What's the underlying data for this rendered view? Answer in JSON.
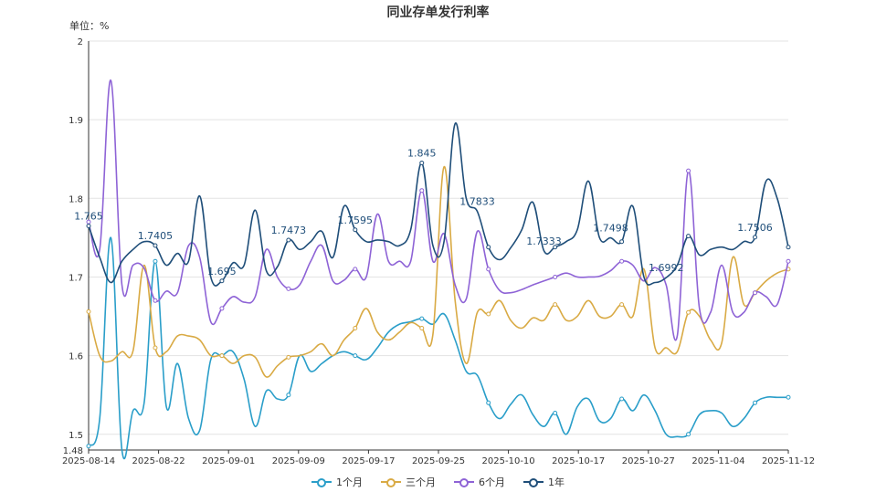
{
  "chart_data": {
    "type": "line",
    "title": "同业存单发行利率",
    "unit_label": "单位：%",
    "ylim": [
      1.48,
      2.0
    ],
    "y_ticks": [
      1.48,
      1.5,
      1.6,
      1.7,
      1.8,
      1.9,
      2
    ],
    "y_tick_labels": [
      "1.48",
      "1.5",
      "1.6",
      "1.7",
      "1.8",
      "1.9",
      "2"
    ],
    "x_tick_labels": [
      "2025-08-14",
      "2025-08-22",
      "2025-09-01",
      "2025-09-09",
      "2025-09-17",
      "2025-09-25",
      "2025-10-10",
      "2025-10-17",
      "2025-10-27",
      "2025-11-04",
      "2025-11-12"
    ],
    "x_count": 64,
    "grid": true,
    "legend_position": "bottom",
    "series": [
      {
        "name": "1个月",
        "color": "#2a9ec9",
        "values": [
          1.485,
          1.52,
          1.75,
          1.48,
          1.53,
          1.54,
          1.72,
          1.535,
          1.59,
          1.52,
          1.505,
          1.595,
          1.6,
          1.605,
          1.57,
          1.51,
          1.555,
          1.545,
          1.55,
          1.6,
          1.58,
          1.59,
          1.6,
          1.605,
          1.6,
          1.595,
          1.61,
          1.63,
          1.64,
          1.643,
          1.647,
          1.64,
          1.653,
          1.62,
          1.58,
          1.575,
          1.54,
          1.52,
          1.538,
          1.55,
          1.525,
          1.51,
          1.527,
          1.5,
          1.535,
          1.545,
          1.517,
          1.52,
          1.545,
          1.53,
          1.55,
          1.53,
          1.5,
          1.497,
          1.5,
          1.525,
          1.53,
          1.527,
          1.51,
          1.52,
          1.54,
          1.547,
          1.547,
          1.547
        ]
      },
      {
        "name": "三个月",
        "color": "#d9aa44",
        "values": [
          1.656,
          1.6,
          1.593,
          1.605,
          1.606,
          1.715,
          1.61,
          1.605,
          1.625,
          1.625,
          1.62,
          1.6,
          1.6,
          1.59,
          1.6,
          1.598,
          1.573,
          1.587,
          1.598,
          1.6,
          1.605,
          1.615,
          1.6,
          1.62,
          1.635,
          1.66,
          1.63,
          1.62,
          1.63,
          1.642,
          1.635,
          1.627,
          1.84,
          1.67,
          1.59,
          1.655,
          1.653,
          1.67,
          1.645,
          1.635,
          1.648,
          1.645,
          1.665,
          1.645,
          1.65,
          1.67,
          1.65,
          1.65,
          1.665,
          1.65,
          1.71,
          1.61,
          1.61,
          1.605,
          1.655,
          1.65,
          1.62,
          1.616,
          1.725,
          1.665,
          1.68,
          1.695,
          1.705,
          1.71
        ]
      },
      {
        "name": "6个月",
        "color": "#8e63d6",
        "values": [
          1.77,
          1.735,
          1.95,
          1.69,
          1.715,
          1.711,
          1.67,
          1.682,
          1.68,
          1.74,
          1.725,
          1.643,
          1.66,
          1.675,
          1.668,
          1.675,
          1.735,
          1.7,
          1.685,
          1.69,
          1.72,
          1.74,
          1.695,
          1.696,
          1.71,
          1.7,
          1.78,
          1.72,
          1.72,
          1.72,
          1.81,
          1.72,
          1.755,
          1.69,
          1.672,
          1.758,
          1.71,
          1.683,
          1.68,
          1.684,
          1.69,
          1.695,
          1.7,
          1.705,
          1.7,
          1.7,
          1.701,
          1.708,
          1.72,
          1.715,
          1.695,
          1.712,
          1.69,
          1.625,
          1.835,
          1.66,
          1.655,
          1.715,
          1.655,
          1.655,
          1.68,
          1.675,
          1.665,
          1.72
        ]
      },
      {
        "name": "1年",
        "color": "#1f4e79",
        "values": [
          1.765,
          1.725,
          1.693,
          1.72,
          1.735,
          1.745,
          1.74,
          1.715,
          1.73,
          1.72,
          1.803,
          1.7,
          1.695,
          1.718,
          1.715,
          1.785,
          1.708,
          1.713,
          1.747,
          1.735,
          1.745,
          1.758,
          1.725,
          1.79,
          1.76,
          1.745,
          1.747,
          1.745,
          1.74,
          1.76,
          1.845,
          1.74,
          1.745,
          1.895,
          1.8,
          1.7833,
          1.738,
          1.722,
          1.737,
          1.76,
          1.795,
          1.7333,
          1.738,
          1.745,
          1.76,
          1.822,
          1.75,
          1.7498,
          1.745,
          1.79,
          1.7,
          1.693,
          1.6992,
          1.715,
          1.752,
          1.728,
          1.735,
          1.738,
          1.735,
          1.745,
          1.7506,
          1.822,
          1.8,
          1.738
        ]
      }
    ],
    "data_labels": [
      {
        "series": 3,
        "index": 0,
        "text": "1.765"
      },
      {
        "series": 3,
        "index": 6,
        "text": "1.7405"
      },
      {
        "series": 3,
        "index": 12,
        "text": "1.695"
      },
      {
        "series": 3,
        "index": 18,
        "text": "1.7473"
      },
      {
        "series": 3,
        "index": 24,
        "text": "1.7595"
      },
      {
        "series": 3,
        "index": 30,
        "text": "1.845"
      },
      {
        "series": 3,
        "index": 35,
        "text": "1.7833"
      },
      {
        "series": 3,
        "index": 41,
        "text": "1.7333"
      },
      {
        "series": 3,
        "index": 47,
        "text": "1.7498"
      },
      {
        "series": 3,
        "index": 52,
        "text": "1.6992"
      },
      {
        "series": 3,
        "index": 60,
        "text": "1.7506"
      }
    ]
  }
}
